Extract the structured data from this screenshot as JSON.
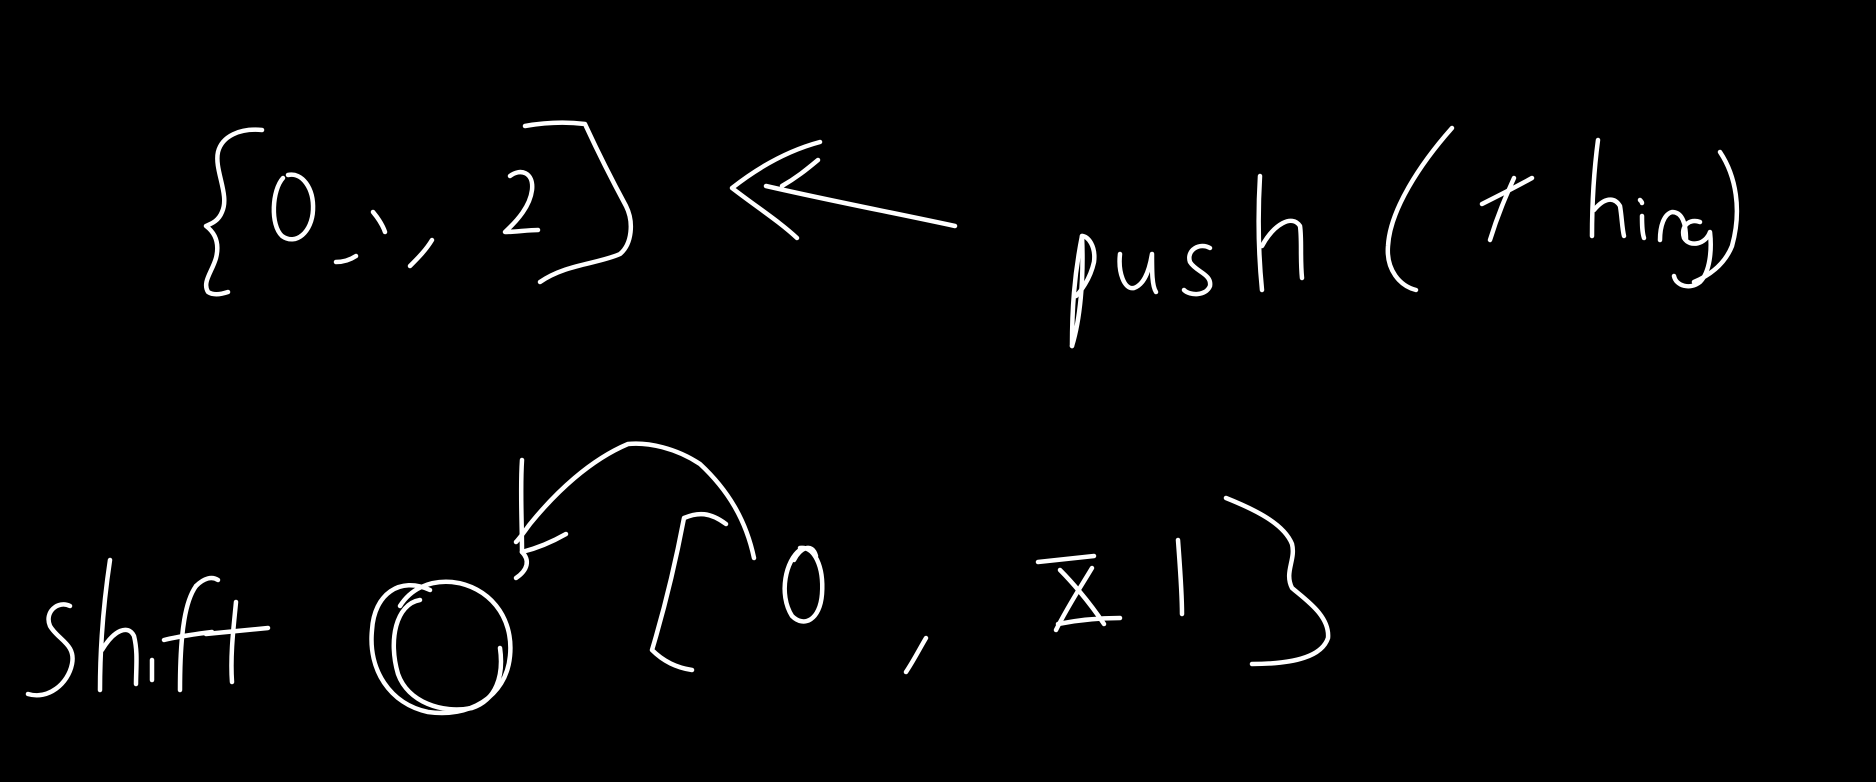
{
  "canvas": {
    "background": "#000000",
    "ink_color": "#ffffff"
  },
  "top_row": {
    "array_text": "{0, 1, 2}",
    "arrow_direction": "left",
    "call_text": "push (thing)"
  },
  "bottom_row": {
    "call_text": "shift",
    "returned_value": "0",
    "array_text": "[0, X 1}",
    "arrow_direction": "left-curved"
  }
}
